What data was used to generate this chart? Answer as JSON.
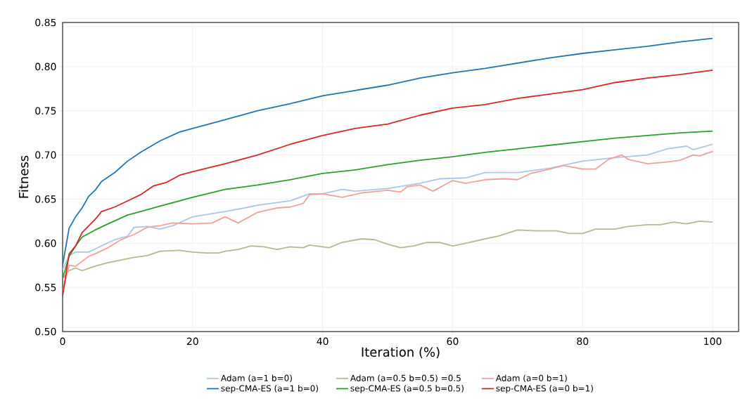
{
  "chart_data": {
    "type": "line",
    "xlabel": "Iteration (%)",
    "ylabel": "Fitness",
    "xlim": [
      0,
      104
    ],
    "xticks": [
      0,
      20,
      40,
      60,
      80,
      100
    ],
    "ylim": [
      0.5,
      0.85
    ],
    "yticks": [
      {
        "value": 0.5,
        "label": "0.50"
      },
      {
        "value": 0.55,
        "label": "0.55"
      },
      {
        "value": 0.6,
        "label": "0.60"
      },
      {
        "value": 0.65,
        "label": "0.65"
      },
      {
        "value": 0.7,
        "label": "0.70"
      },
      {
        "value": 0.75,
        "label": "0.75"
      },
      {
        "value": 0.8,
        "label": "0.80"
      },
      {
        "value": 0.85,
        "label": "0.85"
      }
    ],
    "grid": true,
    "legend": "bottom",
    "marker": "none",
    "line_style": "solid",
    "series": [
      {
        "name": "Adam (a=1 b=0)",
        "color": "#aec7e8",
        "x": [
          0,
          1,
          2,
          4,
          6,
          8,
          10,
          11,
          13,
          15,
          17,
          20,
          25,
          28,
          30,
          35,
          38,
          40,
          43,
          45,
          50,
          55,
          58,
          62,
          65,
          70,
          75,
          80,
          85,
          90,
          93,
          96,
          97,
          100
        ],
        "values": [
          0.57,
          0.586,
          0.59,
          0.59,
          0.597,
          0.604,
          0.608,
          0.618,
          0.619,
          0.616,
          0.62,
          0.63,
          0.636,
          0.64,
          0.643,
          0.648,
          0.656,
          0.656,
          0.661,
          0.659,
          0.662,
          0.668,
          0.673,
          0.674,
          0.68,
          0.68,
          0.685,
          0.693,
          0.697,
          0.7,
          0.707,
          0.71,
          0.706,
          0.712
        ]
      },
      {
        "name": "Adam (a=0.5 b=0.5) =0.5",
        "color": "#b3bb91",
        "x": [
          0,
          1,
          2,
          3,
          5,
          7,
          9,
          11,
          13,
          15,
          18,
          20,
          22,
          24,
          25,
          27,
          29,
          31,
          33,
          35,
          37,
          38,
          41,
          43,
          46,
          48,
          50,
          52,
          54,
          56,
          58,
          60,
          62,
          65,
          67,
          70,
          73,
          76,
          78,
          80,
          82,
          85,
          87,
          90,
          92,
          94,
          96,
          98,
          100
        ],
        "values": [
          0.56,
          0.569,
          0.572,
          0.569,
          0.574,
          0.578,
          0.581,
          0.584,
          0.586,
          0.591,
          0.592,
          0.59,
          0.589,
          0.589,
          0.591,
          0.593,
          0.597,
          0.596,
          0.593,
          0.596,
          0.595,
          0.598,
          0.595,
          0.601,
          0.605,
          0.604,
          0.599,
          0.595,
          0.597,
          0.601,
          0.601,
          0.597,
          0.6,
          0.605,
          0.608,
          0.615,
          0.614,
          0.614,
          0.611,
          0.611,
          0.616,
          0.616,
          0.619,
          0.621,
          0.621,
          0.624,
          0.622,
          0.625,
          0.624
        ]
      },
      {
        "name": "Adam (a=0 b=1)",
        "color": "#f4a09c",
        "x": [
          0,
          1,
          2,
          4,
          5,
          7,
          9,
          11,
          13,
          15,
          17,
          20,
          23,
          25,
          27,
          30,
          33,
          35,
          37,
          38,
          40,
          43,
          46,
          50,
          52,
          53,
          55,
          57,
          60,
          62,
          65,
          68,
          70,
          72,
          75,
          77,
          80,
          82,
          84,
          86,
          87,
          90,
          93,
          95,
          97,
          98,
          100
        ],
        "values": [
          0.545,
          0.575,
          0.574,
          0.585,
          0.588,
          0.595,
          0.604,
          0.61,
          0.618,
          0.62,
          0.623,
          0.622,
          0.623,
          0.63,
          0.623,
          0.635,
          0.64,
          0.641,
          0.645,
          0.655,
          0.656,
          0.652,
          0.657,
          0.66,
          0.658,
          0.664,
          0.666,
          0.659,
          0.671,
          0.668,
          0.672,
          0.673,
          0.672,
          0.679,
          0.684,
          0.688,
          0.684,
          0.684,
          0.695,
          0.7,
          0.695,
          0.69,
          0.692,
          0.694,
          0.7,
          0.699,
          0.704
        ]
      },
      {
        "name": "sep-CMA-ES (a=1 b=0)",
        "color": "#1f77b4",
        "x": [
          0,
          1,
          2,
          3,
          4,
          5,
          6,
          8,
          10,
          12,
          15,
          18,
          20,
          25,
          30,
          35,
          40,
          45,
          50,
          55,
          60,
          65,
          70,
          75,
          80,
          85,
          90,
          95,
          100
        ],
        "values": [
          0.575,
          0.617,
          0.63,
          0.64,
          0.653,
          0.66,
          0.67,
          0.68,
          0.693,
          0.703,
          0.716,
          0.726,
          0.73,
          0.74,
          0.75,
          0.758,
          0.767,
          0.773,
          0.779,
          0.787,
          0.793,
          0.798,
          0.804,
          0.81,
          0.815,
          0.819,
          0.823,
          0.828,
          0.832
        ]
      },
      {
        "name": "sep-CMA-ES (a=0.5 b=0.5)",
        "color": "#2ca02c",
        "x": [
          0,
          1,
          2,
          3,
          5,
          7,
          10,
          12,
          15,
          20,
          25,
          30,
          35,
          40,
          45,
          50,
          55,
          60,
          65,
          70,
          75,
          80,
          85,
          90,
          95,
          100
        ],
        "values": [
          0.56,
          0.585,
          0.597,
          0.607,
          0.615,
          0.622,
          0.632,
          0.636,
          0.642,
          0.652,
          0.661,
          0.666,
          0.672,
          0.679,
          0.683,
          0.689,
          0.694,
          0.698,
          0.703,
          0.707,
          0.711,
          0.715,
          0.719,
          0.722,
          0.725,
          0.727
        ]
      },
      {
        "name": "sep-CMA-ES (a=0 b=1)",
        "color": "#d62728",
        "x": [
          0,
          1,
          2,
          3,
          5,
          6,
          8,
          10,
          12,
          14,
          16,
          18,
          20,
          25,
          30,
          35,
          40,
          45,
          50,
          55,
          60,
          65,
          70,
          75,
          80,
          85,
          90,
          95,
          100
        ],
        "values": [
          0.54,
          0.588,
          0.597,
          0.612,
          0.627,
          0.636,
          0.641,
          0.648,
          0.655,
          0.665,
          0.669,
          0.677,
          0.681,
          0.69,
          0.7,
          0.712,
          0.722,
          0.73,
          0.735,
          0.745,
          0.753,
          0.757,
          0.764,
          0.769,
          0.774,
          0.782,
          0.787,
          0.791,
          0.796
        ]
      }
    ]
  }
}
